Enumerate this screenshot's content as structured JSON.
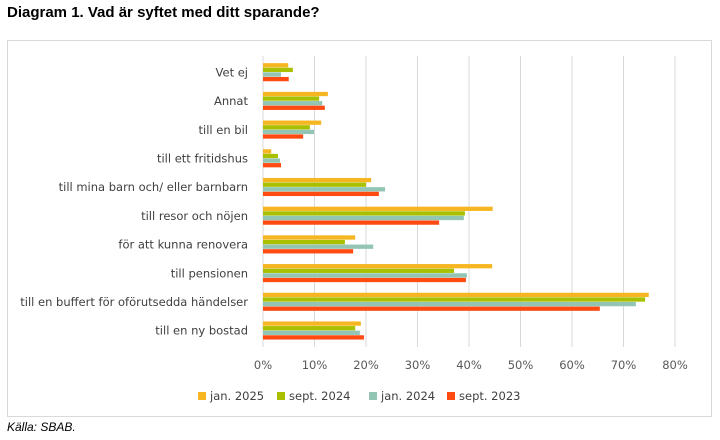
{
  "title": "Diagram 1. Vad är syftet med ditt sparande?",
  "source": "Källa: SBAB.",
  "chart_data": {
    "type": "bar",
    "orientation": "horizontal",
    "title": "Diagram 1. Vad är syftet med ditt sparande?",
    "xlabel": "",
    "ylabel": "",
    "xlim": [
      0,
      80
    ],
    "xticks": [
      0,
      10,
      20,
      30,
      40,
      50,
      60,
      70,
      80
    ],
    "xtick_labels": [
      "0%",
      "10%",
      "20%",
      "30%",
      "40%",
      "50%",
      "60%",
      "70%",
      "80%"
    ],
    "grid": true,
    "legend_position": "bottom",
    "categories": [
      "Vet ej",
      "Annat",
      "till en bil",
      "till ett fritidshus",
      "till mina barn och/ eller barnbarn",
      "till resor och nöjen",
      "för att kunna renovera",
      "till pensionen",
      "till en buffert för oförutsedda händelser",
      "till en ny bostad"
    ],
    "series": [
      {
        "name": "jan. 2025",
        "color": "#F5B622",
        "values": [
          4.9,
          12.6,
          11.3,
          1.6,
          21.0,
          44.6,
          17.9,
          44.5,
          74.9,
          19.0
        ]
      },
      {
        "name": "sept. 2024",
        "color": "#A9C000",
        "values": [
          5.8,
          10.9,
          9.1,
          2.9,
          20.0,
          39.2,
          15.9,
          37.1,
          74.2,
          17.9
        ]
      },
      {
        "name": "jan. 2024",
        "color": "#93C5B5",
        "values": [
          3.5,
          11.5,
          9.9,
          3.3,
          23.7,
          39.0,
          21.4,
          39.6,
          72.4,
          18.8
        ]
      },
      {
        "name": "sept. 2023",
        "color": "#FF4B12",
        "values": [
          5.0,
          12.0,
          7.8,
          3.5,
          22.5,
          34.2,
          17.5,
          39.4,
          65.4,
          19.6
        ]
      }
    ]
  }
}
